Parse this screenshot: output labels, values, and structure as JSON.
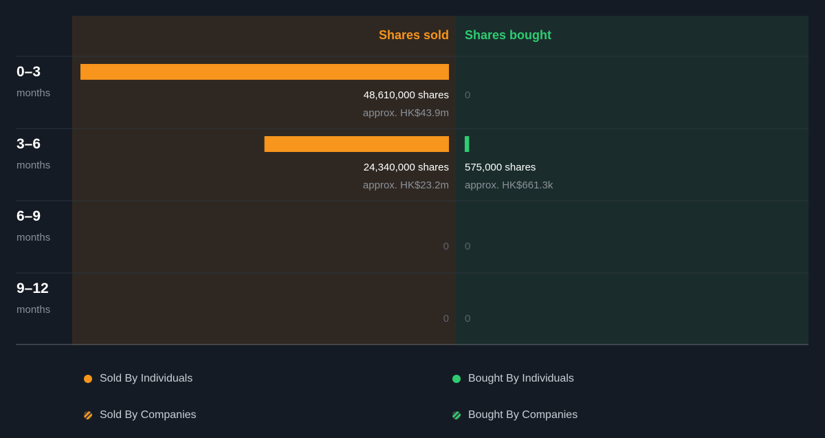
{
  "chart_data": {
    "type": "bar",
    "headers": {
      "sold": "Shares sold",
      "bought": "Shares bought"
    },
    "rows": [
      {
        "period": "0–3",
        "unit": "months",
        "sold": {
          "shares": 48610000,
          "label": "48,610,000 shares",
          "approx": "approx. HK$43.9m"
        },
        "bought": {
          "shares": 0,
          "label": "0",
          "approx": ""
        }
      },
      {
        "period": "3–6",
        "unit": "months",
        "sold": {
          "shares": 24340000,
          "label": "24,340,000 shares",
          "approx": "approx. HK$23.2m"
        },
        "bought": {
          "shares": 575000,
          "label": "575,000 shares",
          "approx": "approx. HK$661.3k"
        }
      },
      {
        "period": "6–9",
        "unit": "months",
        "sold": {
          "shares": 0,
          "label": "0",
          "approx": ""
        },
        "bought": {
          "shares": 0,
          "label": "0",
          "approx": ""
        }
      },
      {
        "period": "9–12",
        "unit": "months",
        "sold": {
          "shares": 0,
          "label": "0",
          "approx": ""
        },
        "bought": {
          "shares": 0,
          "label": "0",
          "approx": ""
        }
      }
    ],
    "legend": [
      {
        "label": "Sold By Individuals",
        "color": "#f7951d",
        "pattern": "solid"
      },
      {
        "label": "Bought By Individuals",
        "color": "#2ecc71",
        "pattern": "solid"
      },
      {
        "label": "Sold By Companies",
        "color": "#f7951d",
        "pattern": "striped"
      },
      {
        "label": "Bought By Companies",
        "color": "#2ecc71",
        "pattern": "striped"
      }
    ],
    "colors": {
      "sold": "#f7951d",
      "bought": "#2ecc71",
      "sold_panel": "#2f2822",
      "bought_panel": "#1a2d2c",
      "background": "#151b24"
    }
  }
}
